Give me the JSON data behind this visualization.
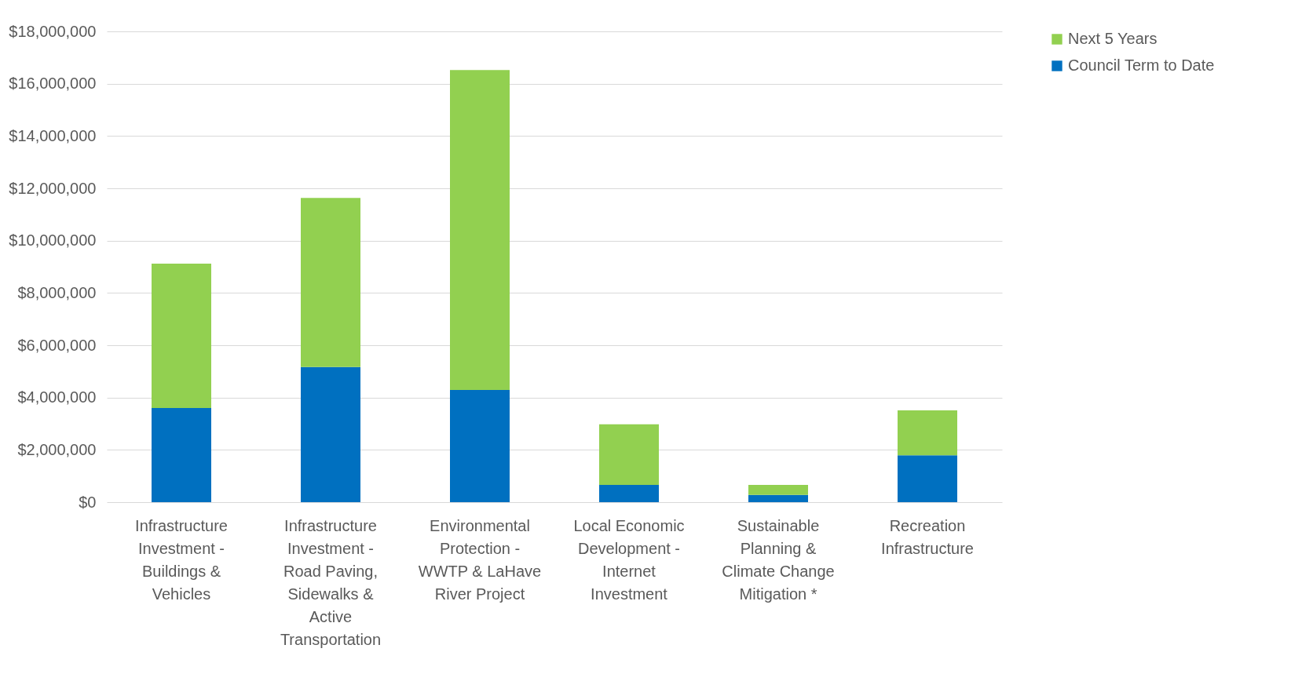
{
  "chart_data": {
    "type": "bar",
    "stacked": true,
    "categories": [
      "Infrastructure Investment - Buildings & Vehicles",
      "Infrastructure Investment - Road Paving, Sidewalks & Active Transportation",
      "Environmental Protection - WWTP & LaHave River Project",
      "Local Economic Development - Internet Investment",
      "Sustainable Planning & Climate Change Mitigation *",
      "Recreation Infrastructure"
    ],
    "series": [
      {
        "name": "Council Term to Date",
        "color": "#0070c0",
        "values": [
          3600000,
          5170000,
          4290000,
          660000,
          280000,
          1790000
        ]
      },
      {
        "name": "Next 5 Years",
        "color": "#92d050",
        "values": [
          5520000,
          6460000,
          12230000,
          2320000,
          380000,
          1720000
        ]
      }
    ],
    "ylim": [
      0,
      18000000
    ],
    "yticks": [
      {
        "value": 0,
        "label": "$0"
      },
      {
        "value": 2000000,
        "label": "$2,000,000"
      },
      {
        "value": 4000000,
        "label": "$4,000,000"
      },
      {
        "value": 6000000,
        "label": "$6,000,000"
      },
      {
        "value": 8000000,
        "label": "$8,000,000"
      },
      {
        "value": 10000000,
        "label": "$10,000,000"
      },
      {
        "value": 12000000,
        "label": "$12,000,000"
      },
      {
        "value": 14000000,
        "label": "$14,000,000"
      },
      {
        "value": 16000000,
        "label": "$16,000,000"
      },
      {
        "value": 18000000,
        "label": "$18,000,000"
      }
    ],
    "grid": true,
    "legend": "top right"
  }
}
